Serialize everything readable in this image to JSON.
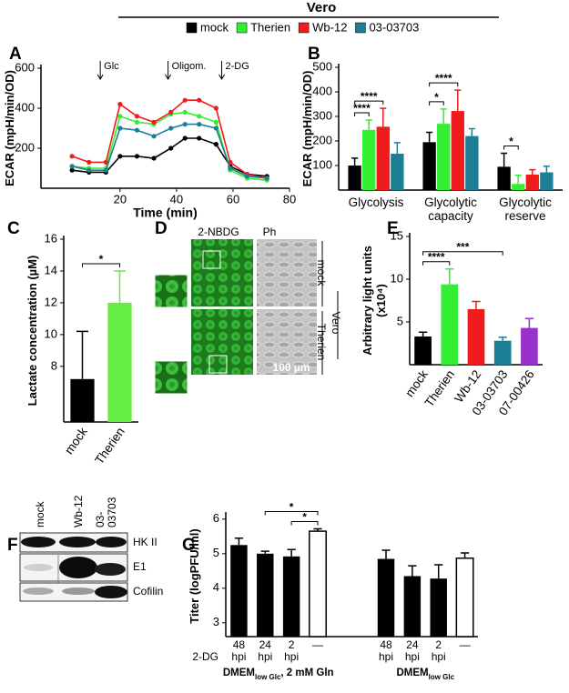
{
  "header": {
    "title": "Vero"
  },
  "panels": {
    "D": {
      "letter": "D",
      "columns": [
        "2-NBDG",
        "Ph"
      ],
      "rows": [
        "mock",
        "Therien"
      ],
      "group": "Vero",
      "scale": "100 µm"
    },
    "F": {
      "letter": "F",
      "lanes": [
        "mock",
        "Wb-12",
        "03-03703"
      ],
      "bands": [
        "HK II",
        "E1",
        "Cofilin"
      ]
    }
  },
  "chart_data": [
    {
      "panel": "A",
      "type": "line",
      "y_label": "ECAR (mpH/min/OD)",
      "x_label": "Time (min)",
      "x": [
        3,
        9,
        15,
        20,
        26,
        32,
        38,
        43,
        48,
        54,
        59,
        65,
        72
      ],
      "xlim": [
        -8,
        80
      ],
      "xticks": [
        20,
        40,
        60,
        80
      ],
      "ylim": [
        0,
        600
      ],
      "yticks": [
        200,
        400,
        600
      ],
      "series": [
        {
          "name": "mock",
          "color": "#000000",
          "values": [
            90,
            80,
            80,
            160,
            160,
            150,
            200,
            250,
            250,
            220,
            110,
            70,
            60
          ]
        },
        {
          "name": "Therien",
          "color": "#33ee33",
          "values": [
            110,
            100,
            100,
            360,
            330,
            320,
            370,
            380,
            360,
            330,
            90,
            50,
            40
          ]
        },
        {
          "name": "Wb-12",
          "color": "#ee1c1c",
          "values": [
            160,
            130,
            130,
            420,
            360,
            330,
            380,
            440,
            440,
            400,
            130,
            70,
            50
          ]
        },
        {
          "name": "03-03703",
          "color": "#1b7f95",
          "values": [
            110,
            90,
            90,
            300,
            290,
            260,
            300,
            320,
            320,
            300,
            100,
            60,
            50
          ]
        }
      ],
      "annotations": [
        {
          "text": "Glc",
          "x": 13
        },
        {
          "text": "Oligom.",
          "x": 37
        },
        {
          "text": "2-DG",
          "x": 56
        }
      ]
    },
    {
      "panel": "B",
      "type": "bar",
      "y_label": "ECAR (mpH/min/OD)",
      "categories": [
        "Glycolysis",
        "Glycolytic capacity",
        "Glycolytic reserve"
      ],
      "ylim": [
        0,
        500
      ],
      "yticks": [
        100,
        200,
        300,
        400,
        500
      ],
      "series": [
        {
          "name": "mock",
          "color": "#000000",
          "values": [
            100,
            195,
            95
          ],
          "errors": [
            30,
            40,
            55
          ]
        },
        {
          "name": "Therien",
          "color": "#33ee33",
          "values": [
            245,
            270,
            25
          ],
          "errors": [
            40,
            60,
            35
          ]
        },
        {
          "name": "Wb-12",
          "color": "#ee1c1c",
          "values": [
            258,
            322,
            63
          ],
          "errors": [
            75,
            85,
            20
          ]
        },
        {
          "name": "03-03703",
          "color": "#1b7f95",
          "values": [
            148,
            220,
            72
          ],
          "errors": [
            45,
            30,
            25
          ]
        }
      ],
      "significance": [
        {
          "text": "****",
          "category": 0,
          "series": [
            0,
            1
          ]
        },
        {
          "text": "****",
          "category": 0,
          "series": [
            0,
            2
          ]
        },
        {
          "text": "*",
          "category": 1,
          "series": [
            0,
            1
          ]
        },
        {
          "text": "****",
          "category": 1,
          "series": [
            0,
            2
          ]
        },
        {
          "text": "*",
          "category": 2,
          "series": [
            0,
            1
          ]
        }
      ]
    },
    {
      "panel": "C",
      "type": "bar",
      "y_label": "Lactate concentration (µM)",
      "categories": [
        "mock",
        "Therien"
      ],
      "values": [
        7.2,
        12.0
      ],
      "errors": [
        3.0,
        2.0
      ],
      "colors": [
        "#000000",
        "#66ee44"
      ],
      "ylim": [
        4.5,
        16
      ],
      "yticks": [
        8,
        10,
        12,
        14,
        16
      ],
      "significance": [
        {
          "text": "*",
          "bars": [
            0,
            1
          ]
        }
      ]
    },
    {
      "panel": "E",
      "type": "bar",
      "y_label": [
        "Arbitrary light units",
        "(x10⁴)"
      ],
      "categories": [
        "mock",
        "Therien",
        "Wb-12",
        "03-03703",
        "07-00426"
      ],
      "values": [
        3.3,
        9.4,
        6.5,
        2.8,
        4.3
      ],
      "errors": [
        0.5,
        1.8,
        0.9,
        0.4,
        1.1
      ],
      "colors": [
        "#000000",
        "#33ee33",
        "#ee1c1c",
        "#1b7f95",
        "#9932cc"
      ],
      "ylim": [
        0,
        15
      ],
      "yticks": [
        5,
        10,
        15
      ],
      "significance": [
        {
          "text": "****",
          "bars": [
            0,
            1
          ]
        },
        {
          "text": "***",
          "bars": [
            0,
            3
          ]
        }
      ]
    },
    {
      "panel": "G",
      "type": "bar",
      "y_label": "Titer (logPFU/ml)",
      "row_label": "2-DG",
      "categories": [
        "48 hpi",
        "24 hpi",
        "2 hpi",
        "—",
        "48 hpi",
        "24 hpi",
        "2 hpi",
        "—"
      ],
      "values": [
        5.25,
        5.0,
        4.92,
        5.65,
        4.85,
        4.35,
        4.28,
        4.87
      ],
      "errors": [
        0.2,
        0.07,
        0.2,
        0.07,
        0.25,
        0.3,
        0.4,
        0.15
      ],
      "colors": [
        "#000000",
        "#000000",
        "#000000",
        "#ffffff",
        "#000000",
        "#000000",
        "#000000",
        "#ffffff"
      ],
      "groups": [
        {
          "name": "DMEM",
          "sub": "low Glc",
          "rest": ", 2 mM Gln"
        },
        {
          "name": "DMEM",
          "sub": "low Glc"
        }
      ],
      "ylim": [
        2.6,
        6.1
      ],
      "yticks": [
        3,
        4,
        5,
        6
      ],
      "significance": [
        {
          "text": "*",
          "bars": [
            2,
            3
          ]
        },
        {
          "text": "*",
          "bars": [
            1,
            3
          ]
        }
      ]
    }
  ]
}
